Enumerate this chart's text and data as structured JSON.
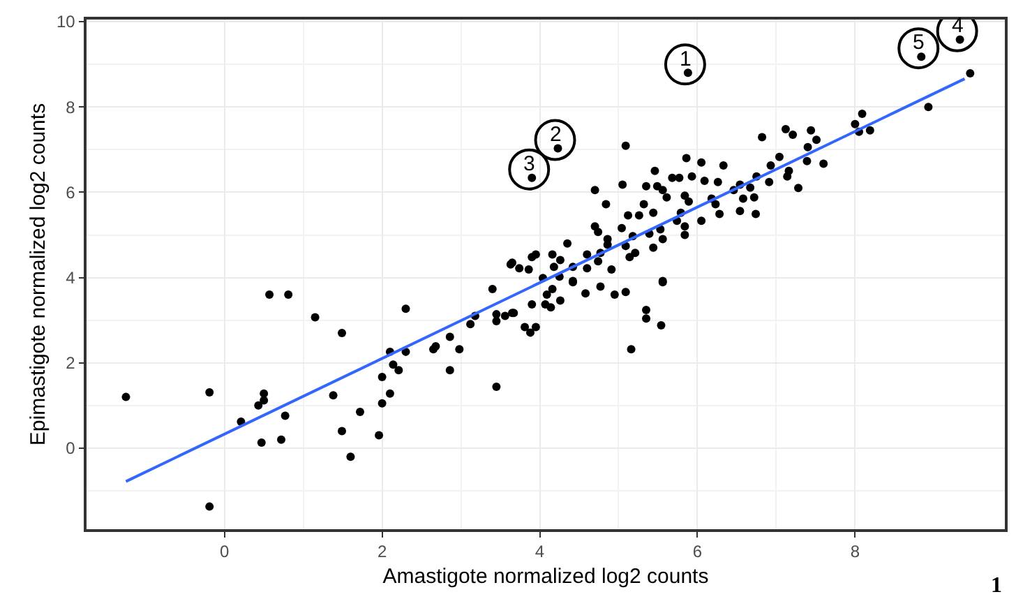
{
  "chart_data": {
    "type": "scatter",
    "xlabel": "Amastigote normalized log2 counts",
    "ylabel": "Epimastigote normalized log2 counts",
    "xlim": [
      -1.75,
      9.9
    ],
    "ylim": [
      -1.9,
      10.05
    ],
    "xticks": [
      0,
      2,
      4,
      6,
      8
    ],
    "yticks": [
      0,
      2,
      4,
      6,
      8,
      10
    ],
    "grid": true,
    "marker": "circle",
    "series": [
      {
        "color": "#000000",
        "x": [
          -1.25,
          -0.19,
          -0.19,
          0.21,
          0.43,
          0.5,
          0.5,
          0.47,
          0.57,
          0.81,
          0.77,
          0.72,
          1.15,
          1.38,
          1.49,
          1.49,
          1.6,
          1.72,
          1.96,
          2.0,
          2.0,
          2.1,
          2.1,
          2.14,
          2.21,
          2.3,
          2.3,
          2.65,
          2.68,
          2.86,
          2.86,
          2.98,
          3.12,
          3.18,
          3.4,
          3.45,
          3.45,
          3.45,
          3.56,
          3.65,
          3.67,
          3.81,
          3.88,
          3.95,
          3.9,
          4.07,
          4.14,
          4.09,
          4.16,
          4.26,
          4.42,
          4.58,
          4.77,
          4.95,
          5.09,
          5.35,
          5.35,
          5.54,
          5.16,
          5.56,
          5.88,
          4.23,
          3.9,
          8.84,
          9.33,
          9.46,
          8.93,
          8.09,
          8.0,
          8.19,
          8.05,
          6.82,
          7.12,
          7.21,
          7.44,
          7.51,
          7.4,
          7.04,
          7.39,
          7.6,
          6.93,
          7.16,
          7.14,
          7.28,
          5.09,
          5.86,
          6.05,
          6.33,
          5.46,
          5.68,
          5.77,
          5.93,
          6.09,
          6.26,
          6.75,
          6.91,
          5.05,
          5.35,
          5.49,
          5.56,
          4.7,
          4.84,
          5.32,
          5.61,
          5.84,
          5.89,
          6.18,
          6.46,
          6.54,
          6.67,
          6.72,
          6.58,
          6.23,
          6.28,
          6.54,
          6.74,
          6.05,
          5.79,
          5.74,
          5.12,
          5.26,
          5.44,
          4.7,
          4.74,
          5.04,
          5.18,
          5.39,
          5.53,
          5.56,
          5.84,
          5.84,
          4.86,
          4.35,
          4.86,
          5.09,
          5.21,
          5.44,
          4.77,
          4.6,
          4.74,
          5.14,
          3.95,
          3.9,
          4.16,
          4.26,
          4.18,
          3.65,
          3.74,
          3.86,
          4.42,
          4.6,
          4.91,
          4.04,
          4.25,
          4.42,
          5.56,
          3.63
        ],
        "values": [
          1.2,
          1.31,
          -1.37,
          0.62,
          1.0,
          1.28,
          1.12,
          0.13,
          3.6,
          3.6,
          0.76,
          0.2,
          3.07,
          1.24,
          2.7,
          0.4,
          -0.2,
          0.85,
          0.3,
          1.05,
          1.67,
          1.28,
          2.26,
          1.96,
          1.83,
          2.26,
          3.27,
          2.32,
          2.39,
          2.61,
          1.83,
          2.32,
          2.91,
          3.1,
          3.73,
          3.14,
          2.98,
          1.44,
          3.1,
          3.17,
          3.17,
          2.84,
          2.71,
          2.84,
          3.37,
          3.37,
          3.3,
          3.6,
          3.73,
          3.46,
          3.89,
          3.63,
          3.79,
          3.6,
          3.66,
          3.24,
          3.04,
          2.88,
          2.32,
          3.89,
          8.8,
          7.03,
          6.34,
          9.18,
          9.58,
          8.79,
          8.0,
          7.84,
          7.6,
          7.45,
          7.42,
          7.29,
          7.48,
          7.35,
          7.45,
          7.23,
          7.06,
          6.83,
          6.73,
          6.67,
          6.63,
          6.5,
          6.37,
          6.1,
          7.09,
          6.8,
          6.7,
          6.63,
          6.5,
          6.34,
          6.34,
          6.37,
          6.27,
          6.24,
          6.37,
          6.24,
          6.18,
          6.14,
          6.14,
          6.05,
          6.05,
          5.72,
          5.72,
          5.88,
          5.92,
          5.78,
          5.85,
          6.05,
          6.18,
          6.11,
          5.88,
          5.85,
          5.72,
          5.49,
          5.56,
          5.49,
          5.33,
          5.52,
          5.33,
          5.46,
          5.46,
          5.52,
          5.2,
          5.07,
          5.16,
          4.97,
          5.03,
          5.13,
          4.9,
          5.0,
          5.2,
          4.9,
          4.8,
          4.77,
          4.74,
          4.58,
          4.7,
          4.58,
          4.54,
          4.38,
          4.48,
          4.54,
          4.48,
          4.54,
          4.41,
          4.25,
          4.35,
          4.22,
          4.19,
          4.25,
          4.22,
          4.19,
          3.99,
          4.02,
          3.92,
          3.92,
          4.31
        ]
      },
      {
        "type": "line",
        "color": "#3366ff",
        "marker": "none",
        "line_style": "solid",
        "x": [
          -1.25,
          9.39
        ],
        "values": [
          -0.78,
          8.66
        ]
      }
    ],
    "annotations": [
      {
        "text": "1",
        "x": 5.88,
        "y": 8.8
      },
      {
        "text": "2",
        "x": 4.23,
        "y": 7.03
      },
      {
        "text": "3",
        "x": 3.9,
        "y": 6.34
      },
      {
        "text": "4",
        "x": 9.33,
        "y": 9.58
      },
      {
        "text": "5",
        "x": 8.84,
        "y": 9.18
      },
      "1"
    ]
  }
}
